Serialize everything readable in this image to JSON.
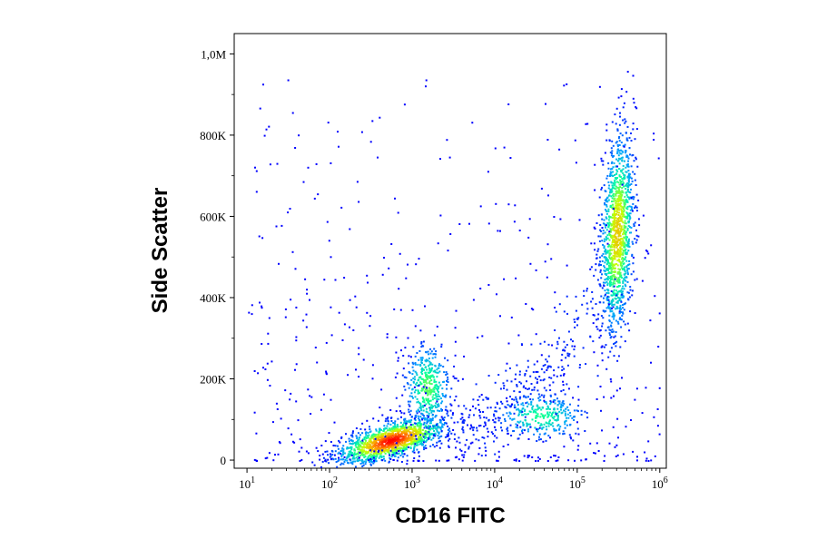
{
  "chart_data": {
    "type": "scatter",
    "title": "",
    "xlabel": "CD16 FITC",
    "ylabel": "Side Scatter",
    "x_scale": "log",
    "xlim": [
      7,
      1200000
    ],
    "ylim": [
      -20000,
      1050000
    ],
    "x_ticks": [
      {
        "base": "10",
        "exp": "1",
        "value": 10
      },
      {
        "base": "10",
        "exp": "2",
        "value": 100
      },
      {
        "base": "10",
        "exp": "3",
        "value": 1000
      },
      {
        "base": "10",
        "exp": "4",
        "value": 10000
      },
      {
        "base": "10",
        "exp": "5",
        "value": 100000
      },
      {
        "base": "10",
        "exp": "6",
        "value": 1000000
      }
    ],
    "y_ticks": [
      {
        "label": "0",
        "value": 0
      },
      {
        "label": "200K",
        "value": 200000
      },
      {
        "label": "400K",
        "value": 400000
      },
      {
        "label": "600K",
        "value": 600000
      },
      {
        "label": "800K",
        "value": 800000
      },
      {
        "label": "1,0M",
        "value": 1000000
      }
    ],
    "grid": false,
    "colormap": [
      "#0000ff",
      "#00a0ff",
      "#00ffa0",
      "#c8ff00",
      "#ffa000",
      "#ff0000"
    ],
    "populations": [
      {
        "x_center": 550,
        "y_center": 50000,
        "count": 1400,
        "color_peak": "#ff0000"
      },
      {
        "x_center": 1500,
        "y_center": 180000,
        "count": 420,
        "color_peak": "#00c8a0"
      },
      {
        "x_center": 35000,
        "y_center": 110000,
        "count": 320,
        "color_peak": "#00b0ff"
      },
      {
        "x_center": 300000,
        "y_center": 560000,
        "count": 1300,
        "color_peak": "#c8ff00"
      }
    ]
  }
}
